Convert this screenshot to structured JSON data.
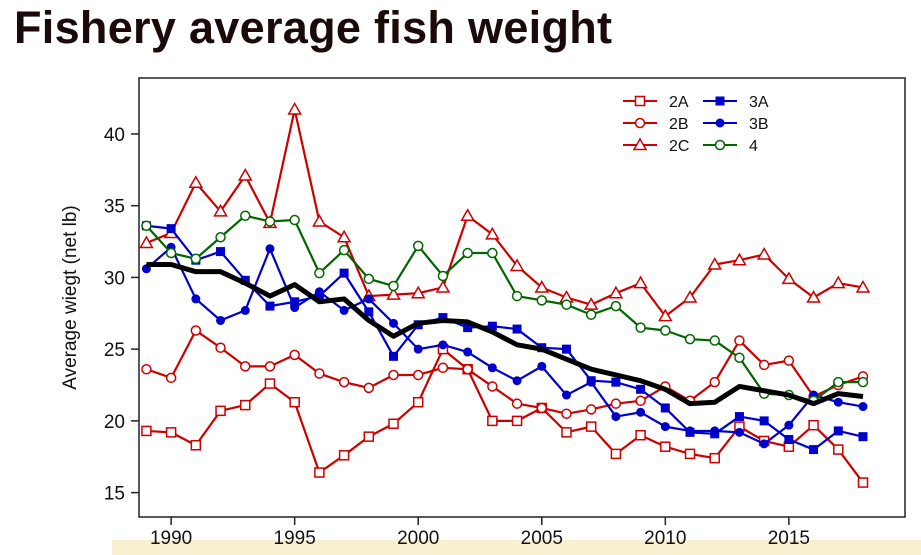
{
  "chart_data": {
    "type": "line",
    "title": "Fishery average fish weight",
    "xlabel": "",
    "ylabel": "Average wiegt (net lb)",
    "xlim": [
      1988.7,
      2019.7
    ],
    "ylim": [
      13.3,
      43.9
    ],
    "xticks": [
      1990,
      1995,
      2000,
      2005,
      2010,
      2015
    ],
    "yticks": [
      15,
      20,
      25,
      30,
      35,
      40
    ],
    "grid": false,
    "legend_position": "top-right",
    "x": [
      1989,
      1990,
      1991,
      1992,
      1993,
      1994,
      1995,
      1996,
      1997,
      1998,
      1999,
      2000,
      2001,
      2002,
      2003,
      2004,
      2005,
      2006,
      2007,
      2008,
      2009,
      2010,
      2011,
      2012,
      2013,
      2014,
      2015,
      2016,
      2017,
      2018
    ],
    "series": [
      {
        "name": "2A",
        "color": "#cc0000",
        "marker": "open-square",
        "values": [
          19.3,
          19.2,
          18.3,
          20.7,
          21.1,
          22.6,
          21.3,
          16.4,
          17.6,
          18.9,
          19.8,
          21.3,
          25.0,
          23.6,
          20.0,
          20.0,
          20.9,
          19.2,
          19.6,
          17.7,
          19.0,
          18.2,
          17.7,
          17.4,
          19.6,
          18.6,
          18.2,
          19.7,
          18.0,
          15.7
        ]
      },
      {
        "name": "2B",
        "color": "#cc0000",
        "marker": "open-circle",
        "values": [
          23.6,
          23.0,
          26.3,
          25.1,
          23.8,
          23.8,
          24.6,
          23.3,
          22.7,
          22.3,
          23.2,
          23.2,
          23.7,
          23.6,
          22.4,
          21.2,
          20.9,
          20.5,
          20.8,
          21.2,
          21.4,
          22.4,
          21.4,
          22.7,
          25.6,
          23.9,
          24.2,
          21.7,
          22.5,
          23.1
        ]
      },
      {
        "name": "2C",
        "color": "#cc0000",
        "marker": "open-triangle",
        "values": [
          32.4,
          33.1,
          36.6,
          34.6,
          37.1,
          33.8,
          41.7,
          33.9,
          32.8,
          28.7,
          28.8,
          28.9,
          29.3,
          34.3,
          33.0,
          30.8,
          29.3,
          28.6,
          28.1,
          28.9,
          29.6,
          27.3,
          28.6,
          30.9,
          31.2,
          31.6,
          29.9,
          28.6,
          29.6,
          29.3
        ]
      },
      {
        "name": "3A",
        "color": "#0000cc",
        "marker": "filled-square",
        "values": [
          33.6,
          33.4,
          31.2,
          31.8,
          29.8,
          28.0,
          28.3,
          28.7,
          30.3,
          27.6,
          24.5,
          26.7,
          27.2,
          26.5,
          26.6,
          26.4,
          25.1,
          25.0,
          22.8,
          22.7,
          22.2,
          20.9,
          19.2,
          19.1,
          20.3,
          20.0,
          18.7,
          18.0,
          19.3,
          18.9
        ]
      },
      {
        "name": "3B",
        "color": "#0000cc",
        "marker": "filled-circle",
        "values": [
          30.6,
          32.1,
          28.5,
          27.0,
          27.7,
          32.0,
          27.9,
          29.0,
          27.7,
          28.5,
          26.8,
          25.0,
          25.3,
          24.8,
          23.7,
          22.8,
          23.8,
          21.8,
          22.7,
          20.3,
          20.6,
          19.6,
          19.3,
          19.3,
          19.2,
          18.4,
          19.7,
          21.8,
          21.3,
          21.0
        ]
      },
      {
        "name": "4",
        "color": "#006600",
        "marker": "open-circle",
        "values": [
          33.6,
          31.7,
          31.3,
          32.8,
          34.3,
          33.9,
          34.0,
          30.3,
          31.9,
          29.9,
          29.4,
          32.2,
          30.1,
          31.7,
          31.7,
          28.7,
          28.4,
          28.1,
          27.4,
          28.0,
          26.5,
          26.3,
          25.7,
          25.6,
          24.4,
          21.9,
          21.8,
          21.4,
          22.7,
          22.7
        ]
      },
      {
        "color": "#000000",
        "marker": "none",
        "values": [
          30.9,
          30.9,
          30.4,
          30.4,
          29.6,
          28.7,
          29.5,
          28.3,
          28.5,
          27.0,
          25.9,
          26.8,
          27.0,
          26.9,
          26.2,
          25.3,
          25.0,
          24.3,
          23.6,
          23.2,
          22.8,
          22.2,
          21.2,
          21.3,
          22.4,
          22.1,
          21.8,
          21.2,
          21.9,
          21.7
        ]
      }
    ]
  }
}
